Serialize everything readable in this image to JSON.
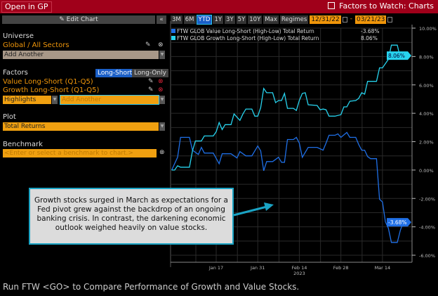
{
  "header": {
    "open_button": "Open in GP",
    "title": "Factors to Watch: Charts",
    "title_icon": "external-link-icon"
  },
  "panel": {
    "edit_chart": "✎ Edit Chart",
    "collapse": "«",
    "universe_label": "Universe",
    "universe_value": "Global / All Sectors",
    "universe_add": "Add Another",
    "factors_label": "Factors",
    "toggle_long_short": "Long-Short",
    "toggle_long_only": "Long-Only",
    "factors": [
      "Value Long-Short (Q1-Q5)",
      "Growth Long-Short (Q1-Q5)"
    ],
    "highlights": "Highlights",
    "factors_add": "Add Another",
    "plot_label": "Plot",
    "plot_value": "Total Returns",
    "benchmark_label": "Benchmark",
    "benchmark_placeholder": "<Enter or select a benchmark to chart.>"
  },
  "toolbar": {
    "periods": [
      "3M",
      "6M",
      "YTD",
      "1Y",
      "3Y",
      "5Y",
      "10Y",
      "Max",
      "Regimes"
    ],
    "active": "YTD",
    "start_date": "12/31/22",
    "sep": "-",
    "end_date": "03/21/23"
  },
  "callout": "Growth stocks surged in March as expectations for a Fed pivot grew against the backdrop of an ongoing banking crisis. In contrast, the darkening economic outlook weighed heavily on value stocks.",
  "footer": "Run FTW <GO> to Compare Performance of Growth and Value Stocks.",
  "chart_data": {
    "type": "line",
    "xlabel": "2023",
    "x_ticks": [
      "Jan 17",
      "Jan 31",
      "Feb 14",
      "Feb 28",
      "Mar 14"
    ],
    "x_tick_dates": [
      "2023-01-17",
      "2023-01-31",
      "2023-02-14",
      "2023-02-28",
      "2023-03-14"
    ],
    "y_ticks": [
      "10.00%",
      "8.00%",
      "6.00%",
      "4.00%",
      "2.00%",
      "0.00%",
      "-2.00%",
      "-4.00%",
      "-6.00%"
    ],
    "ylim": [
      -6,
      10
    ],
    "grid": true,
    "legend": "top-left",
    "y_axis": "right",
    "series": [
      {
        "name": "FTW GLOB Value Long-Short (High-Low) Total Return",
        "last": "-3.68%",
        "color": "#1f6fe6",
        "points": [
          [
            "2023-01-02",
            0
          ],
          [
            "2023-01-04",
            0.9
          ],
          [
            "2023-01-05",
            2.3
          ],
          [
            "2023-01-08",
            2.3
          ],
          [
            "2023-01-09",
            1.4
          ],
          [
            "2023-01-11",
            1.1
          ],
          [
            "2023-01-12",
            1.6
          ],
          [
            "2023-01-13",
            1.2
          ],
          [
            "2023-01-16",
            1.2
          ],
          [
            "2023-01-18",
            0.45
          ],
          [
            "2023-01-19",
            1.15
          ],
          [
            "2023-01-22",
            1.15
          ],
          [
            "2023-01-24",
            0.85
          ],
          [
            "2023-01-25",
            1.3
          ],
          [
            "2023-01-27",
            1.0
          ],
          [
            "2023-01-29",
            1.0
          ],
          [
            "2023-01-31",
            1.7
          ],
          [
            "2023-02-01",
            1.35
          ],
          [
            "2023-02-02",
            -0.05
          ],
          [
            "2023-02-03",
            0.6
          ],
          [
            "2023-02-05",
            0.6
          ],
          [
            "2023-02-07",
            0.9
          ],
          [
            "2023-02-08",
            0.55
          ],
          [
            "2023-02-09",
            0.55
          ],
          [
            "2023-02-10",
            2.15
          ],
          [
            "2023-02-12",
            2.15
          ],
          [
            "2023-02-13",
            2.3
          ],
          [
            "2023-02-14",
            1.9
          ],
          [
            "2023-02-15",
            0.9
          ],
          [
            "2023-02-17",
            1.6
          ],
          [
            "2023-02-20",
            1.6
          ],
          [
            "2023-02-22",
            1.4
          ],
          [
            "2023-02-23",
            1.9
          ],
          [
            "2023-02-24",
            2.45
          ],
          [
            "2023-02-26",
            2.45
          ],
          [
            "2023-02-27",
            2.55
          ],
          [
            "2023-02-28",
            2.3
          ],
          [
            "2023-03-02",
            2.65
          ],
          [
            "2023-03-03",
            2.3
          ],
          [
            "2023-03-05",
            2.3
          ],
          [
            "2023-03-06",
            1.8
          ],
          [
            "2023-03-07",
            1.4
          ],
          [
            "2023-03-08",
            1.4
          ],
          [
            "2023-03-09",
            0.95
          ],
          [
            "2023-03-10",
            0.8
          ],
          [
            "2023-03-12",
            0.8
          ],
          [
            "2023-03-13",
            -2.05
          ],
          [
            "2023-03-14",
            -2.25
          ],
          [
            "2023-03-15",
            -3.65
          ],
          [
            "2023-03-16",
            -4.1
          ],
          [
            "2023-03-17",
            -5.1
          ],
          [
            "2023-03-19",
            -5.1
          ],
          [
            "2023-03-20",
            -4.25
          ],
          [
            "2023-03-21",
            -3.68
          ]
        ]
      },
      {
        "name": "FTW GLOB Growth Long-Short (High-Low) Total Return",
        "last": "8.06%",
        "color": "#27d3ee",
        "points": [
          [
            "2023-01-02",
            0
          ],
          [
            "2023-01-03",
            0
          ],
          [
            "2023-01-04",
            0.3
          ],
          [
            "2023-01-05",
            0.2
          ],
          [
            "2023-01-08",
            0.2
          ],
          [
            "2023-01-09",
            1.35
          ],
          [
            "2023-01-10",
            2.05
          ],
          [
            "2023-01-12",
            2.05
          ],
          [
            "2023-01-13",
            2.4
          ],
          [
            "2023-01-16",
            2.4
          ],
          [
            "2023-01-17",
            2.7
          ],
          [
            "2023-01-18",
            3.35
          ],
          [
            "2023-01-19",
            2.85
          ],
          [
            "2023-01-20",
            3.2
          ],
          [
            "2023-01-22",
            3.2
          ],
          [
            "2023-01-23",
            3.95
          ],
          [
            "2023-01-25",
            3.5
          ],
          [
            "2023-01-26",
            3.95
          ],
          [
            "2023-01-27",
            4.3
          ],
          [
            "2023-01-29",
            4.3
          ],
          [
            "2023-01-30",
            3.8
          ],
          [
            "2023-01-31",
            3.8
          ],
          [
            "2023-02-01",
            4.4
          ],
          [
            "2023-02-02",
            5.75
          ],
          [
            "2023-02-03",
            5.45
          ],
          [
            "2023-02-05",
            5.45
          ],
          [
            "2023-02-06",
            4.75
          ],
          [
            "2023-02-07",
            4.9
          ],
          [
            "2023-02-08",
            4.9
          ],
          [
            "2023-02-09",
            5.4
          ],
          [
            "2023-02-10",
            4.35
          ],
          [
            "2023-02-12",
            4.35
          ],
          [
            "2023-02-13",
            4.2
          ],
          [
            "2023-02-14",
            4.9
          ],
          [
            "2023-02-15",
            5.4
          ],
          [
            "2023-02-16",
            5.45
          ],
          [
            "2023-02-17",
            4.6
          ],
          [
            "2023-02-20",
            4.55
          ],
          [
            "2023-02-21",
            4.25
          ],
          [
            "2023-02-22",
            4.3
          ],
          [
            "2023-02-23",
            4.25
          ],
          [
            "2023-02-24",
            3.8
          ],
          [
            "2023-02-26",
            3.8
          ],
          [
            "2023-02-28",
            3.9
          ],
          [
            "2023-03-01",
            4.45
          ],
          [
            "2023-03-02",
            4.45
          ],
          [
            "2023-03-03",
            4.85
          ],
          [
            "2023-03-05",
            4.9
          ],
          [
            "2023-03-06",
            5.05
          ],
          [
            "2023-03-07",
            5.45
          ],
          [
            "2023-03-08",
            5.35
          ],
          [
            "2023-03-09",
            6.25
          ],
          [
            "2023-03-12",
            6.25
          ],
          [
            "2023-03-13",
            7.2
          ],
          [
            "2023-03-14",
            7.2
          ],
          [
            "2023-03-16",
            7.8
          ],
          [
            "2023-03-17",
            8.8
          ],
          [
            "2023-03-19",
            8.8
          ],
          [
            "2023-03-20",
            7.9
          ],
          [
            "2023-03-21",
            8.06
          ]
        ]
      }
    ]
  }
}
